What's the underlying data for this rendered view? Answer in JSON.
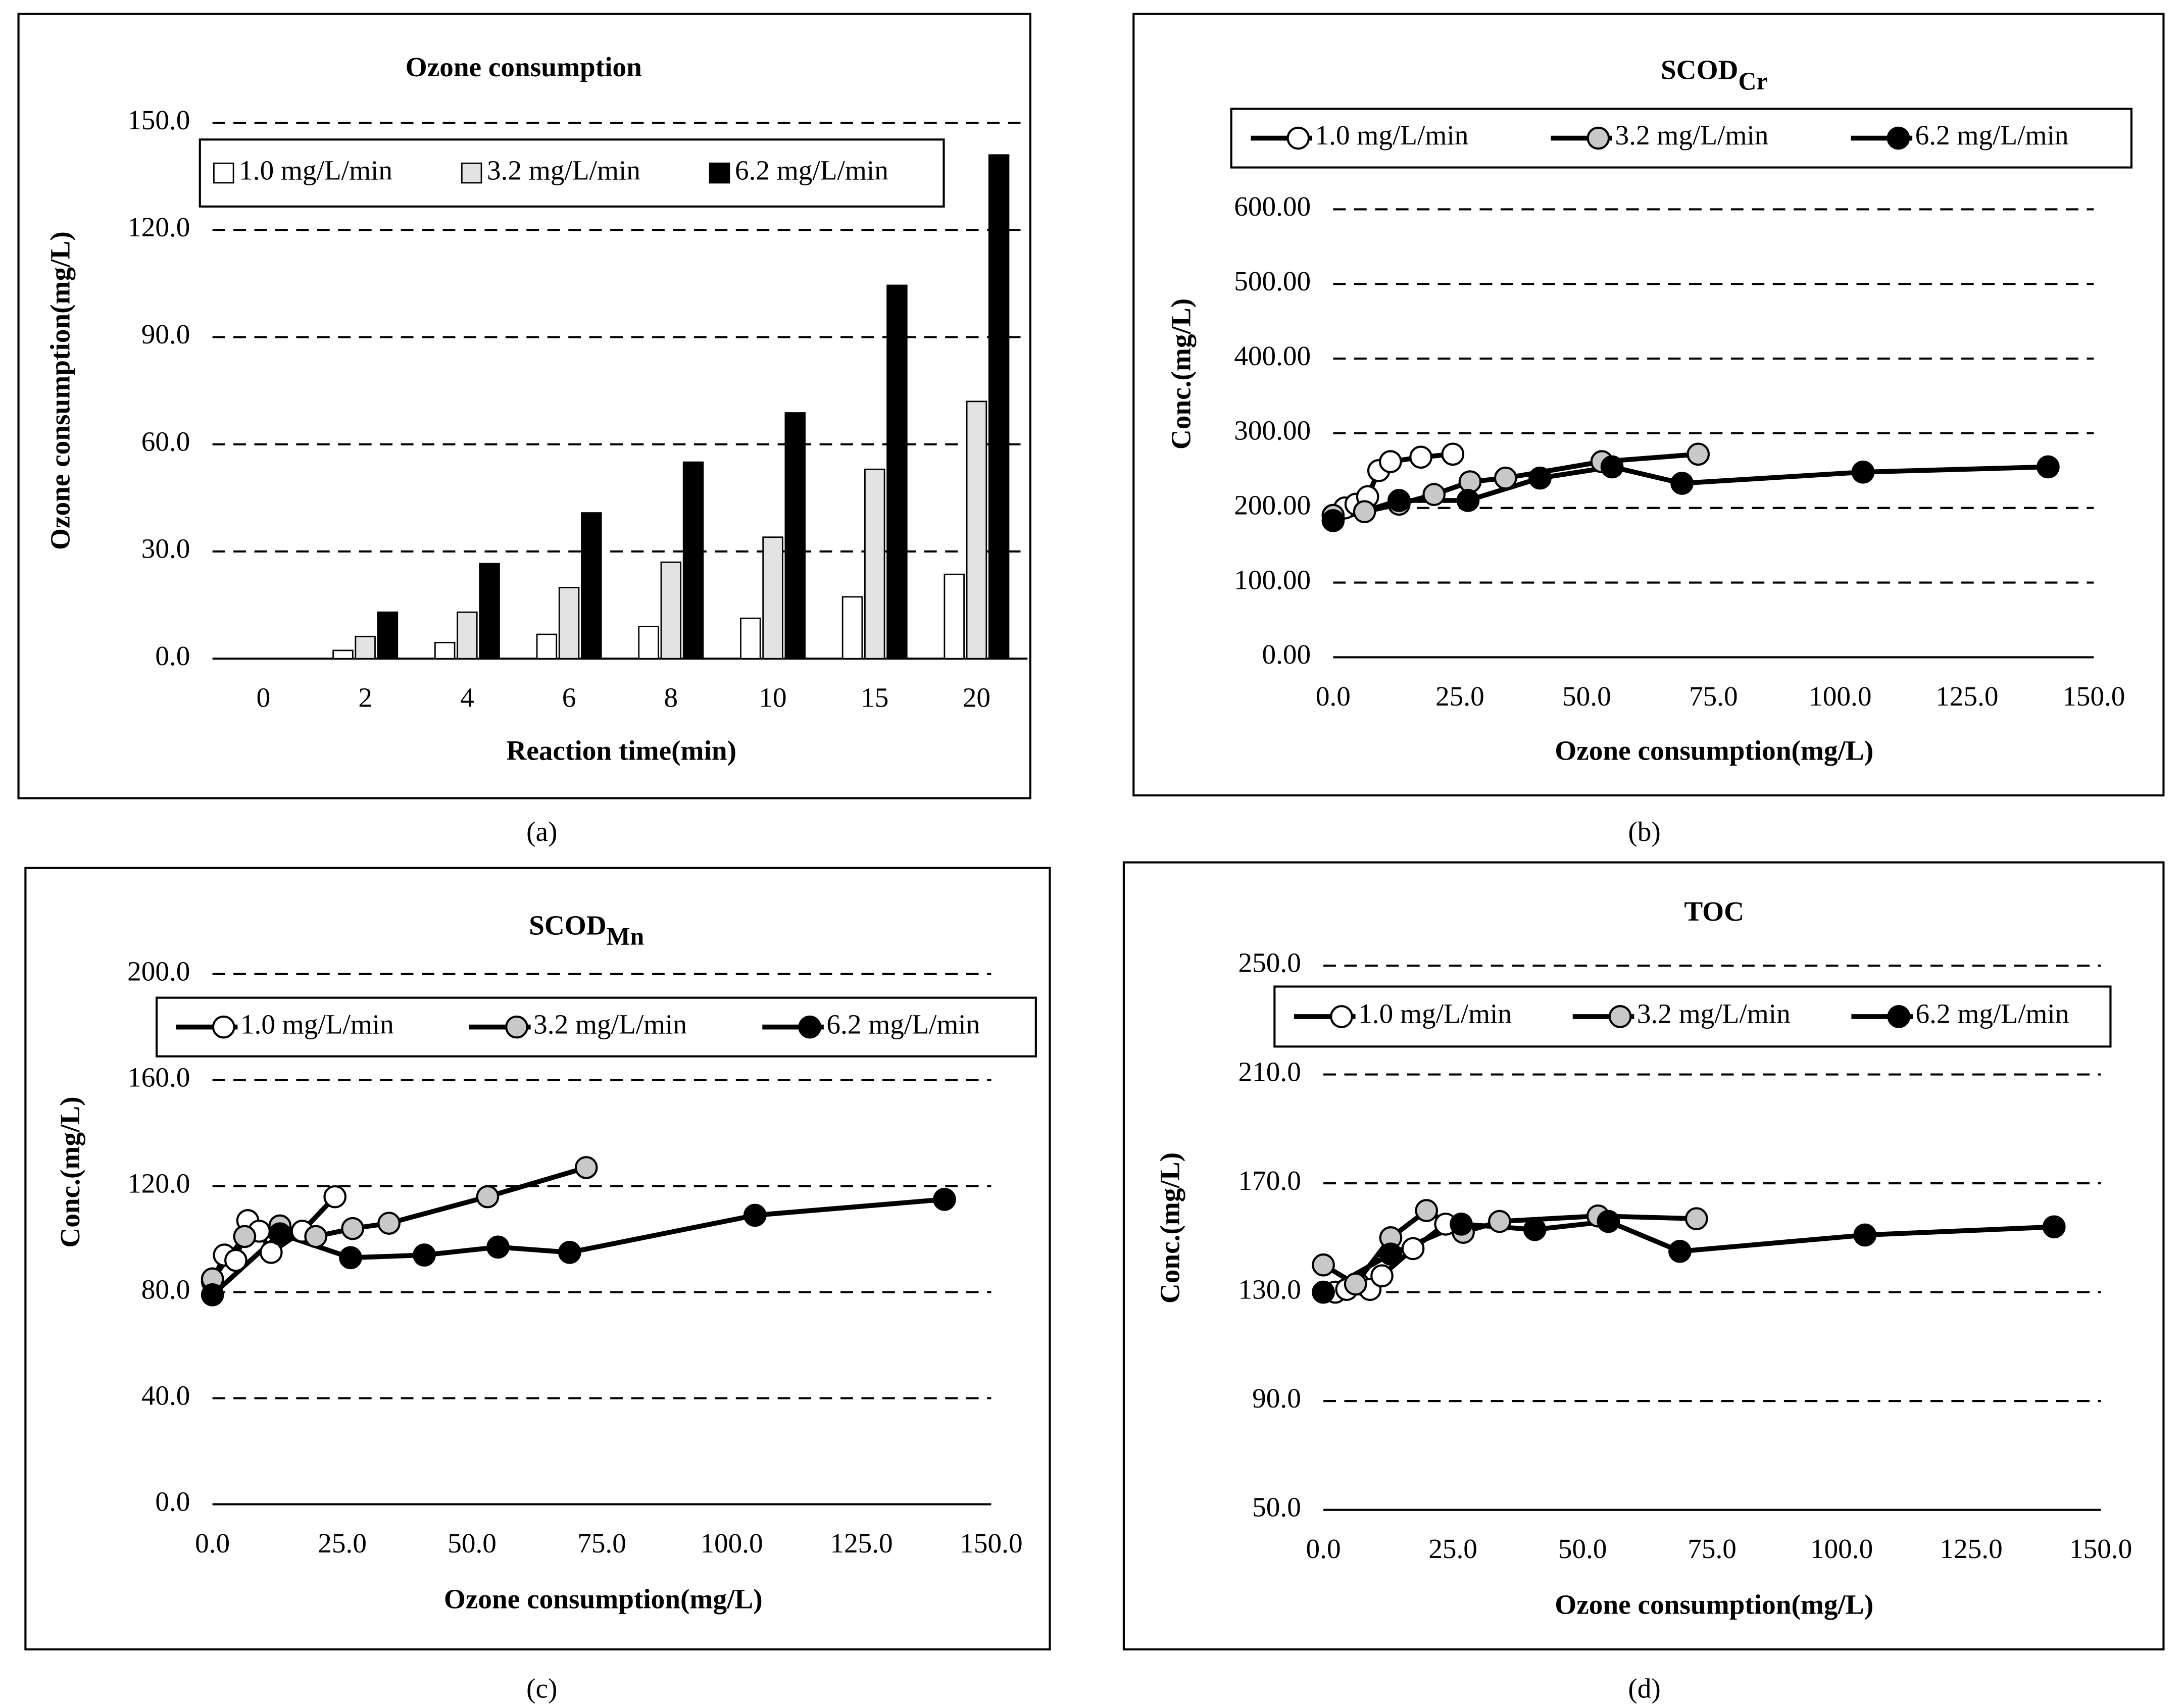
{
  "chart_data": [
    {
      "type": "bar",
      "panel_label": "(a)",
      "title": "Ozone consumption",
      "x_label": "Reaction time(min)",
      "y_label": "Ozone consumption(mg/L)",
      "categories": [
        "0",
        "2",
        "4",
        "6",
        "8",
        "10",
        "15",
        "20"
      ],
      "series": [
        {
          "name": "1.0 mg/L/min",
          "color": "#ffffff",
          "values": [
            0,
            2.3,
            4.5,
            6.8,
            9.0,
            11.3,
            17.3,
            23.6
          ]
        },
        {
          "name": "3.2 mg/L/min",
          "color": "#e3e3e3",
          "values": [
            0,
            6.2,
            13.0,
            19.9,
            27.0,
            34.0,
            53.0,
            72.0
          ]
        },
        {
          "name": "6.2 mg/L/min",
          "color": "#000000",
          "values": [
            0,
            13.0,
            26.6,
            40.8,
            55.0,
            68.8,
            104.5,
            141.0
          ]
        }
      ],
      "ylim": [
        0,
        150
      ],
      "yticks": [
        {
          "value": 0,
          "label": "0.0"
        },
        {
          "value": 30,
          "label": "30.0"
        },
        {
          "value": 60,
          "label": "60.0"
        },
        {
          "value": 90,
          "label": "90.0"
        },
        {
          "value": 120,
          "label": "120.0"
        },
        {
          "value": 150,
          "label": "150.0"
        }
      ],
      "grid": true
    },
    {
      "type": "line",
      "panel_label": "(b)",
      "title": "SCOD",
      "title_sub": "Cr",
      "x_label": "Ozone consumption(mg/L)",
      "y_label": "Conc.(mg/L)",
      "series": [
        {
          "name": "1.0 mg/L/min",
          "color": "#ffffff",
          "x": [
            0,
            2.3,
            4.5,
            6.8,
            9.0,
            11.3,
            17.3,
            23.6
          ],
          "values": [
            190,
            200,
            205,
            215,
            250,
            262,
            268,
            272
          ]
        },
        {
          "name": "3.2 mg/L/min",
          "color": "#c8c8c8",
          "x": [
            0,
            6.2,
            13.0,
            19.9,
            27.0,
            34.0,
            53.0,
            72.0
          ],
          "values": [
            190,
            195,
            205,
            218,
            235,
            240,
            262,
            272
          ]
        },
        {
          "name": "6.2 mg/L/min",
          "color": "#000000",
          "x": [
            0,
            13.0,
            26.6,
            40.8,
            55.0,
            68.8,
            104.5,
            141.0
          ],
          "values": [
            183,
            210,
            210,
            240,
            255,
            233,
            248,
            255
          ]
        }
      ],
      "xlim": [
        0,
        150
      ],
      "xticks": [
        {
          "value": 0,
          "label": "0.0"
        },
        {
          "value": 25,
          "label": "25.0"
        },
        {
          "value": 50,
          "label": "50.0"
        },
        {
          "value": 75,
          "label": "75.0"
        },
        {
          "value": 100,
          "label": "100.0"
        },
        {
          "value": 125,
          "label": "125.0"
        },
        {
          "value": 150,
          "label": "150.0"
        }
      ],
      "ylim": [
        0,
        600
      ],
      "yticks": [
        {
          "value": 0,
          "label": "0.00"
        },
        {
          "value": 100,
          "label": "100.00"
        },
        {
          "value": 200,
          "label": "200.00"
        },
        {
          "value": 300,
          "label": "300.00"
        },
        {
          "value": 400,
          "label": "400.00"
        },
        {
          "value": 500,
          "label": "500.00"
        },
        {
          "value": 600,
          "label": "600.00"
        }
      ],
      "grid": true
    },
    {
      "type": "line",
      "panel_label": "(c)",
      "title": "SCOD",
      "title_sub": "Mn",
      "x_label": "Ozone consumption(mg/L)",
      "y_label": "Conc.(mg/L)",
      "series": [
        {
          "name": "1.0 mg/L/min",
          "color": "#ffffff",
          "x": [
            0,
            2.3,
            4.5,
            6.8,
            9.0,
            11.3,
            17.3,
            23.6
          ],
          "values": [
            84,
            94,
            92,
            107,
            103,
            95,
            103,
            116
          ]
        },
        {
          "name": "3.2 mg/L/min",
          "color": "#c8c8c8",
          "x": [
            0,
            6.2,
            13.0,
            19.9,
            27.0,
            34.0,
            53.0,
            72.0
          ],
          "values": [
            85,
            101,
            105,
            101,
            104,
            106,
            116,
            127
          ]
        },
        {
          "name": "6.2 mg/L/min",
          "color": "#000000",
          "x": [
            0,
            13.0,
            26.6,
            40.8,
            55.0,
            68.8,
            104.5,
            141.0
          ],
          "values": [
            79,
            102,
            93,
            94,
            97,
            95,
            109,
            115
          ]
        }
      ],
      "xlim": [
        0,
        150
      ],
      "xticks": [
        {
          "value": 0,
          "label": "0.0"
        },
        {
          "value": 25,
          "label": "25.0"
        },
        {
          "value": 50,
          "label": "50.0"
        },
        {
          "value": 75,
          "label": "75.0"
        },
        {
          "value": 100,
          "label": "100.0"
        },
        {
          "value": 125,
          "label": "125.0"
        },
        {
          "value": 150,
          "label": "150.0"
        }
      ],
      "ylim": [
        0,
        200
      ],
      "yticks": [
        {
          "value": 0,
          "label": "0.0"
        },
        {
          "value": 40,
          "label": "40.0"
        },
        {
          "value": 80,
          "label": "80.0"
        },
        {
          "value": 120,
          "label": "120.0"
        },
        {
          "value": 160,
          "label": "160.0"
        },
        {
          "value": 200,
          "label": "200.0"
        }
      ],
      "grid": true
    },
    {
      "type": "line",
      "panel_label": "(d)",
      "title": "TOC",
      "x_label": "Ozone consumption(mg/L)",
      "y_label": "Conc.(mg/L)",
      "series": [
        {
          "name": "1.0 mg/L/min",
          "color": "#ffffff",
          "x": [
            0,
            2.3,
            4.5,
            6.8,
            9.0,
            11.3,
            17.3,
            23.6
          ],
          "values": [
            130,
            130,
            131,
            133,
            131,
            136,
            146,
            155
          ]
        },
        {
          "name": "3.2 mg/L/min",
          "color": "#c8c8c8",
          "x": [
            0,
            6.2,
            13.0,
            19.9,
            27.0,
            34.0,
            53.0,
            72.0
          ],
          "values": [
            140,
            133,
            150,
            160,
            152,
            156,
            158,
            157
          ]
        },
        {
          "name": "6.2 mg/L/min",
          "color": "#000000",
          "x": [
            0,
            13.0,
            26.6,
            40.8,
            55.0,
            68.8,
            104.5,
            141.0
          ],
          "values": [
            130,
            144,
            155,
            153,
            156,
            145,
            151,
            154
          ]
        }
      ],
      "xlim": [
        0,
        150
      ],
      "xticks": [
        {
          "value": 0,
          "label": "0.0"
        },
        {
          "value": 25,
          "label": "25.0"
        },
        {
          "value": 50,
          "label": "50.0"
        },
        {
          "value": 75,
          "label": "75.0"
        },
        {
          "value": 100,
          "label": "100.0"
        },
        {
          "value": 125,
          "label": "125.0"
        },
        {
          "value": 150,
          "label": "150.0"
        }
      ],
      "ylim": [
        50,
        250
      ],
      "yticks": [
        {
          "value": 50,
          "label": "50.0"
        },
        {
          "value": 90,
          "label": "90.0"
        },
        {
          "value": 130,
          "label": "130.0"
        },
        {
          "value": 170,
          "label": "170.0"
        },
        {
          "value": 210,
          "label": "210.0"
        },
        {
          "value": 250,
          "label": "250.0"
        }
      ],
      "grid": true
    }
  ]
}
